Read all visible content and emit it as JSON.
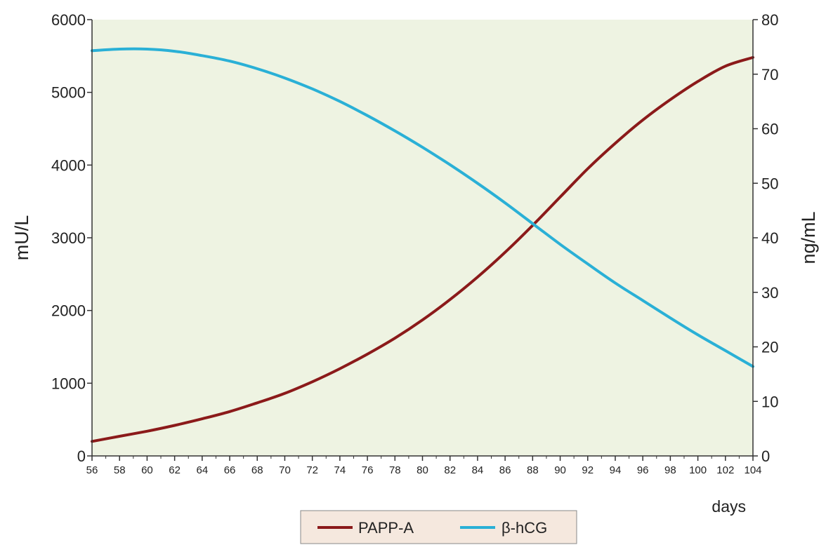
{
  "chart_data": {
    "type": "line",
    "xlabel": "days",
    "ylabel_left": "mU/L",
    "ylabel_right": "ng/mL",
    "x": [
      56,
      58,
      60,
      62,
      64,
      66,
      68,
      70,
      72,
      74,
      76,
      78,
      80,
      82,
      84,
      86,
      88,
      90,
      92,
      94,
      96,
      98,
      100,
      102,
      104
    ],
    "x_tick_labels": [
      "56",
      "58",
      "60",
      "62",
      "64",
      "66",
      "68",
      "70",
      "72",
      "74",
      "76",
      "78",
      "80",
      "82",
      "84",
      "86",
      "88",
      "90",
      "92",
      "94",
      "96",
      "98",
      "100",
      "102",
      "104"
    ],
    "ylim_left": [
      0,
      6000
    ],
    "yticks_left": [
      "0",
      "1000",
      "2000",
      "3000",
      "4000",
      "5000",
      "6000"
    ],
    "ylim_right": [
      0,
      80
    ],
    "yticks_right": [
      "0",
      "10",
      "20",
      "30",
      "40",
      "50",
      "60",
      "70",
      "80"
    ],
    "series": [
      {
        "name": "PAPP-A",
        "axis": "left",
        "color": "#8b1a1a",
        "values": [
          200,
          270,
          340,
          420,
          510,
          610,
          730,
          860,
          1020,
          1200,
          1400,
          1620,
          1870,
          2150,
          2460,
          2800,
          3170,
          3560,
          3950,
          4300,
          4620,
          4900,
          5150,
          5360,
          5480
        ]
      },
      {
        "name": "β-hCG",
        "axis": "right",
        "color": "#2ab0d6",
        "values": [
          74.3,
          74.6,
          74.6,
          74.2,
          73.4,
          72.4,
          71.0,
          69.3,
          67.3,
          65.0,
          62.4,
          59.6,
          56.6,
          53.4,
          50.0,
          46.4,
          42.6,
          38.8,
          35.2,
          31.7,
          28.5,
          25.3,
          22.2,
          19.3,
          16.4
        ]
      }
    ],
    "plot_background": "#eef3e2",
    "legend_background": "#f5e8de",
    "legend_position": "bottom-center",
    "grid": false
  }
}
